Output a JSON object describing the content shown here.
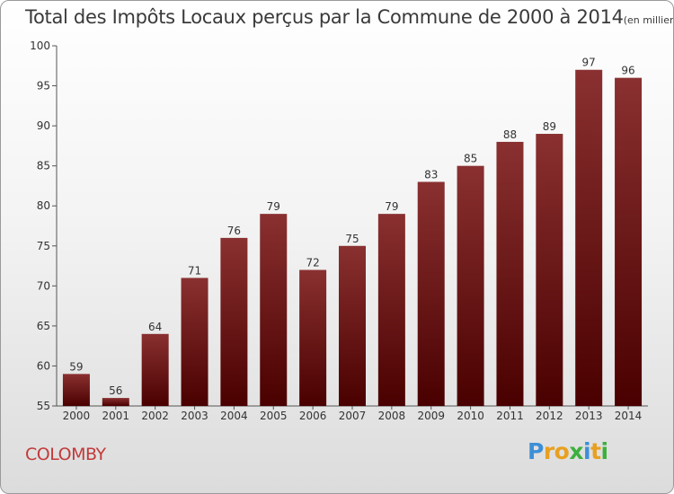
{
  "title": "Total des Impôts Locaux perçus par la Commune de 2000 à 2014",
  "unit_note": "(en milliers d'€)",
  "commune": "COLOMBY",
  "logo": {
    "letters": [
      "P",
      "r",
      "o",
      "x",
      "i",
      "t",
      "i"
    ],
    "colors": [
      "#3d8fd8",
      "#e8a020",
      "#e8a020",
      "#3db03d",
      "#3d8fd8",
      "#e8a020",
      "#3db03d"
    ]
  },
  "colors": {
    "bar_top": "#8a3030",
    "bar_bottom": "#4a0000",
    "axis": "#555555"
  },
  "chart_data": {
    "type": "bar",
    "title": "Total des Impôts Locaux perçus par la Commune de 2000 à 2014",
    "ylabel": "",
    "xlabel": "",
    "categories": [
      "2000",
      "2001",
      "2002",
      "2003",
      "2004",
      "2005",
      "2006",
      "2007",
      "2008",
      "2009",
      "2010",
      "2011",
      "2012",
      "2013",
      "2014"
    ],
    "values": [
      59,
      56,
      64,
      71,
      76,
      79,
      72,
      75,
      79,
      83,
      85,
      88,
      89,
      97,
      96
    ],
    "ylim": [
      55,
      100
    ],
    "yticks": [
      55,
      60,
      65,
      70,
      75,
      80,
      85,
      90,
      95,
      100
    ],
    "grid": false,
    "legend": "none"
  }
}
